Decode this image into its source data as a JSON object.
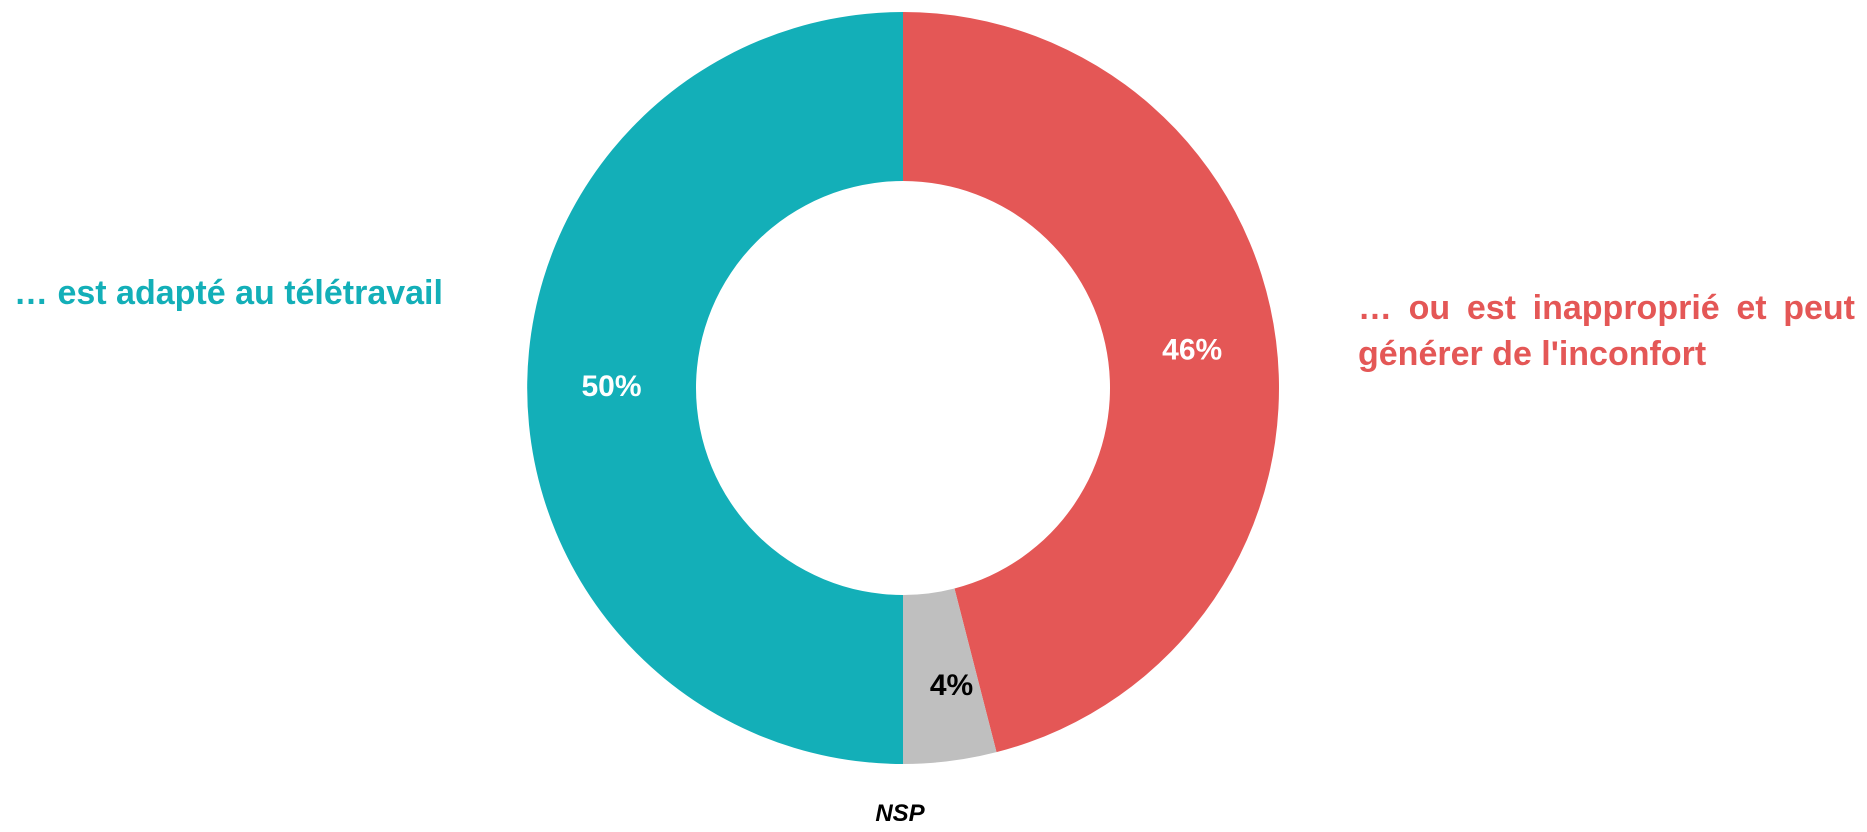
{
  "chart_data": {
    "type": "pie",
    "style": "donut",
    "start_angle_deg": 0,
    "direction": "clockwise",
    "slices": [
      {
        "label": "… ou est inapproprié et peut générer de l'inconfort",
        "value": 46,
        "value_label": "46%",
        "color": "#E45756",
        "value_label_color": "#FFFFFF"
      },
      {
        "label": "NSP",
        "value": 4,
        "value_label": "4%",
        "color": "#BFBFBF",
        "value_label_color": "#000000"
      },
      {
        "label": "… est adapté au télétravail",
        "value": 50,
        "value_label": "50%",
        "color": "#13AFB8",
        "value_label_color": "#FFFFFF"
      }
    ],
    "legend": "none"
  },
  "labels": {
    "left": "… est adapté au télétravail",
    "right": "… ou est inapproprié et peut générer de l'inconfort",
    "bottom": "NSP"
  },
  "colors": {
    "left_label": "#13AFB8",
    "right_label": "#E45756"
  }
}
